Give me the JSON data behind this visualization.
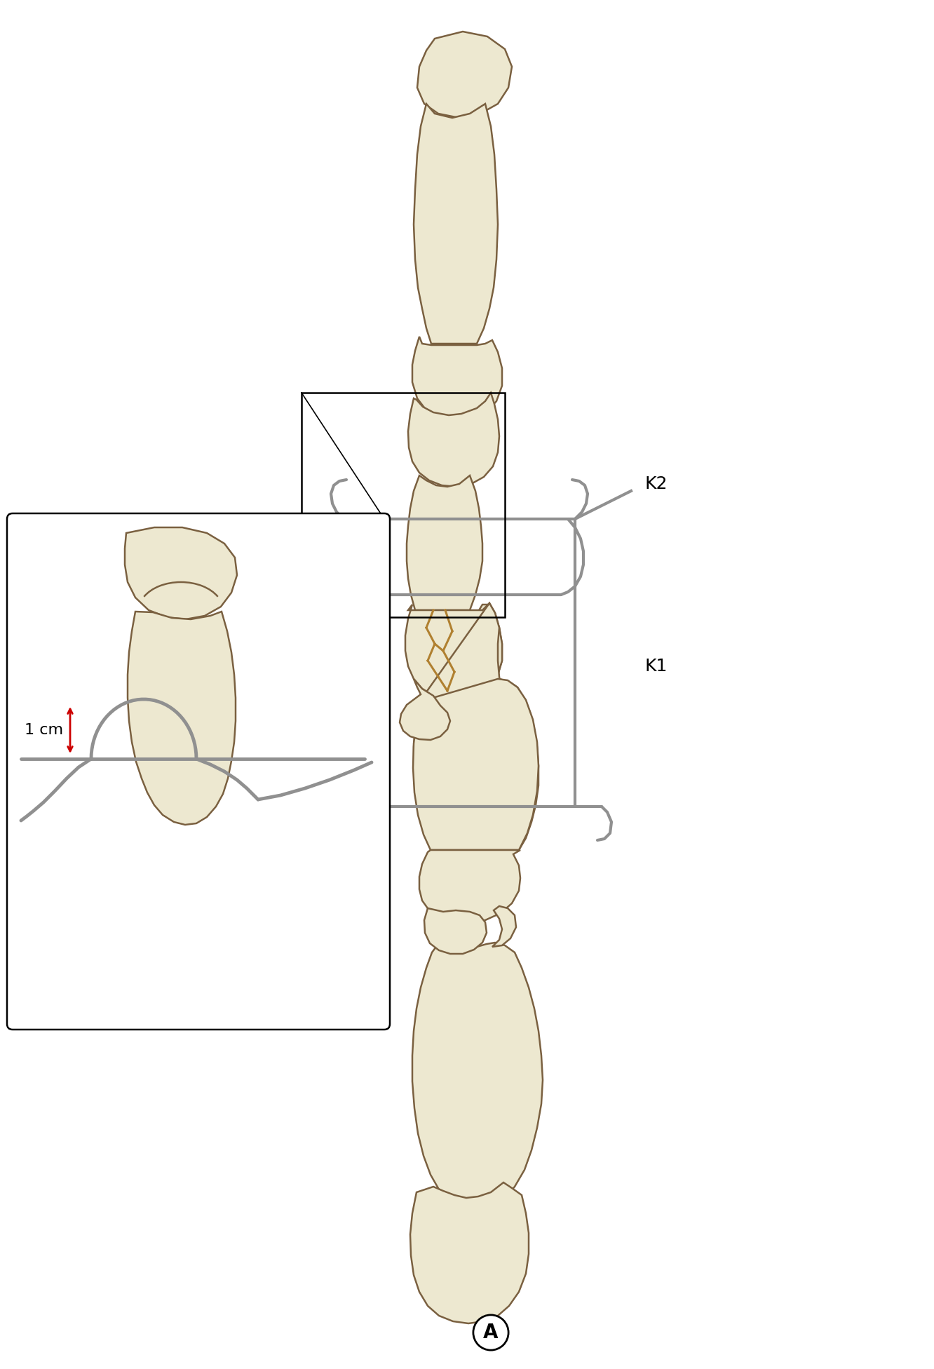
{
  "background_color": "#ffffff",
  "figure_width": 13.32,
  "figure_height": 19.52,
  "dpi": 100,
  "bone_color": "#ede8d0",
  "bone_outline_color": "#7a6040",
  "bone_shadow_color": "#d4c9a0",
  "wire_color": "#909090",
  "wire_highlight": "#c0c0c0",
  "fracture_color": "#b08030",
  "arrow_color": "#cc0000",
  "label_K2": "K2",
  "label_K1": "K1",
  "label_1cm": "1 cm",
  "label_A": "A",
  "font_size_main": 18,
  "font_size_A": 20,
  "wire_lw": 3.0,
  "bone_lw": 1.8
}
